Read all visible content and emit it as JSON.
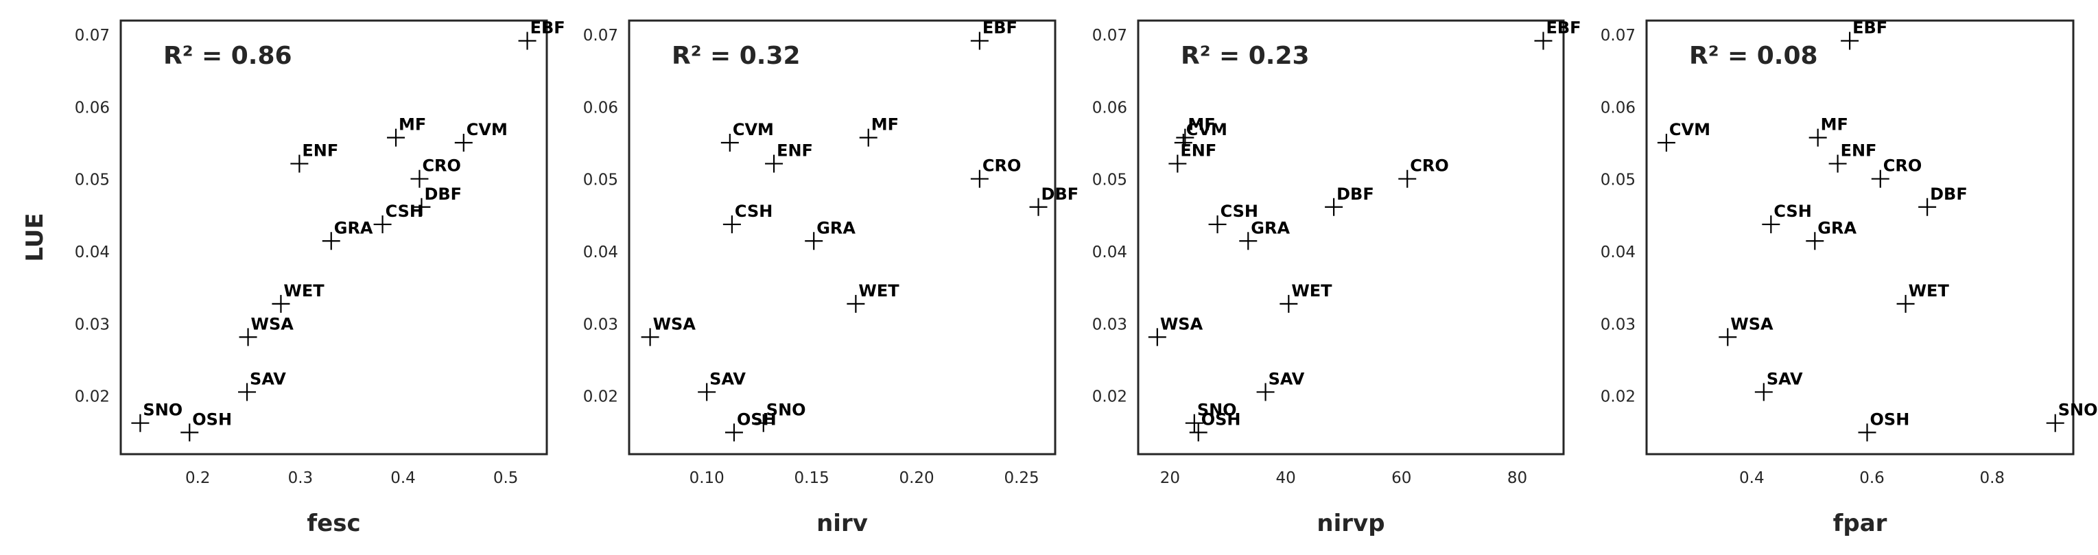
{
  "chart_data": [
    {
      "type": "scatter",
      "xlabel": "fesc",
      "ylabel": "LUE",
      "annotation": "R² = 0.86",
      "xlim": [
        0.125,
        0.54
      ],
      "ylim": [
        0.012,
        0.072
      ],
      "xticks": [
        "0.2",
        "0.3",
        "0.4",
        "0.5"
      ],
      "xtick_values": [
        0.2,
        0.3,
        0.4,
        0.5
      ],
      "yticks": [
        "0.02",
        "0.03",
        "0.04",
        "0.05",
        "0.06",
        "0.07"
      ],
      "ytick_values": [
        0.02,
        0.03,
        0.04,
        0.05,
        0.06,
        0.07
      ],
      "points": [
        {
          "label": "EBF",
          "x": 0.521,
          "y": 0.0692
        },
        {
          "label": "MF",
          "x": 0.393,
          "y": 0.0558
        },
        {
          "label": "CVM",
          "x": 0.459,
          "y": 0.0551
        },
        {
          "label": "ENF",
          "x": 0.299,
          "y": 0.0522
        },
        {
          "label": "CRO",
          "x": 0.416,
          "y": 0.0501
        },
        {
          "label": "DBF",
          "x": 0.418,
          "y": 0.0462
        },
        {
          "label": "CSH",
          "x": 0.38,
          "y": 0.0438
        },
        {
          "label": "GRA",
          "x": 0.33,
          "y": 0.0415
        },
        {
          "label": "WET",
          "x": 0.281,
          "y": 0.0328
        },
        {
          "label": "WSA",
          "x": 0.249,
          "y": 0.0282
        },
        {
          "label": "SAV",
          "x": 0.248,
          "y": 0.0206
        },
        {
          "label": "SNO",
          "x": 0.144,
          "y": 0.0163
        },
        {
          "label": "OSH",
          "x": 0.192,
          "y": 0.015
        }
      ]
    },
    {
      "type": "scatter",
      "xlabel": "nirv",
      "ylabel": "",
      "annotation": "R² = 0.32",
      "xlim": [
        0.063,
        0.266
      ],
      "ylim": [
        0.012,
        0.072
      ],
      "xticks": [
        "0.10",
        "0.15",
        "0.20",
        "0.25"
      ],
      "xtick_values": [
        0.1,
        0.15,
        0.2,
        0.25
      ],
      "yticks": [
        "0.02",
        "0.03",
        "0.04",
        "0.05",
        "0.06",
        "0.07"
      ],
      "ytick_values": [
        0.02,
        0.03,
        0.04,
        0.05,
        0.06,
        0.07
      ],
      "points": [
        {
          "label": "EBF",
          "x": 0.23,
          "y": 0.0692
        },
        {
          "label": "CVM",
          "x": 0.111,
          "y": 0.0551
        },
        {
          "label": "MF",
          "x": 0.177,
          "y": 0.0558
        },
        {
          "label": "ENF",
          "x": 0.132,
          "y": 0.0522
        },
        {
          "label": "CRO",
          "x": 0.23,
          "y": 0.0501
        },
        {
          "label": "DBF",
          "x": 0.258,
          "y": 0.0462
        },
        {
          "label": "CSH",
          "x": 0.112,
          "y": 0.0438
        },
        {
          "label": "GRA",
          "x": 0.151,
          "y": 0.0415
        },
        {
          "label": "WET",
          "x": 0.171,
          "y": 0.0328
        },
        {
          "label": "WSA",
          "x": 0.073,
          "y": 0.0282
        },
        {
          "label": "SAV",
          "x": 0.1,
          "y": 0.0206
        },
        {
          "label": "SNO",
          "x": 0.127,
          "y": 0.0163
        },
        {
          "label": "OSH",
          "x": 0.113,
          "y": 0.015
        }
      ]
    },
    {
      "type": "scatter",
      "xlabel": "nirvp",
      "ylabel": "",
      "annotation": "R² = 0.23",
      "xlim": [
        14.5,
        88
      ],
      "ylim": [
        0.012,
        0.072
      ],
      "xticks": [
        "20",
        "40",
        "60",
        "80"
      ],
      "xtick_values": [
        20,
        40,
        60,
        80
      ],
      "yticks": [
        "0.02",
        "0.03",
        "0.04",
        "0.05",
        "0.06",
        "0.07"
      ],
      "ytick_values": [
        0.02,
        0.03,
        0.04,
        0.05,
        0.06,
        0.07
      ],
      "points": [
        {
          "label": "EBF",
          "x": 84.5,
          "y": 0.0692
        },
        {
          "label": "MF",
          "x": 22.6,
          "y": 0.0558
        },
        {
          "label": "CVM",
          "x": 22.3,
          "y": 0.0551
        },
        {
          "label": "ENF",
          "x": 21.3,
          "y": 0.0522
        },
        {
          "label": "CRO",
          "x": 61,
          "y": 0.0501
        },
        {
          "label": "DBF",
          "x": 48.3,
          "y": 0.0462
        },
        {
          "label": "CSH",
          "x": 28.2,
          "y": 0.0438
        },
        {
          "label": "GRA",
          "x": 33.5,
          "y": 0.0415
        },
        {
          "label": "WET",
          "x": 40.5,
          "y": 0.0328
        },
        {
          "label": "WSA",
          "x": 17.8,
          "y": 0.0282
        },
        {
          "label": "SAV",
          "x": 36.5,
          "y": 0.0206
        },
        {
          "label": "SNO",
          "x": 24.2,
          "y": 0.0163
        },
        {
          "label": "OSH",
          "x": 24.9,
          "y": 0.015
        }
      ]
    },
    {
      "type": "scatter",
      "xlabel": "fpar",
      "ylabel": "",
      "annotation": "R² = 0.08",
      "xlim": [
        0.225,
        0.935
      ],
      "ylim": [
        0.012,
        0.072
      ],
      "xticks": [
        "0.4",
        "0.6",
        "0.8"
      ],
      "xtick_values": [
        0.4,
        0.6,
        0.8
      ],
      "yticks": [
        "0.02",
        "0.03",
        "0.04",
        "0.05",
        "0.06",
        "0.07"
      ],
      "ytick_values": [
        0.02,
        0.03,
        0.04,
        0.05,
        0.06,
        0.07
      ],
      "points": [
        {
          "label": "EBF",
          "x": 0.563,
          "y": 0.0692
        },
        {
          "label": "CVM",
          "x": 0.258,
          "y": 0.0551
        },
        {
          "label": "MF",
          "x": 0.51,
          "y": 0.0558
        },
        {
          "label": "ENF",
          "x": 0.543,
          "y": 0.0522
        },
        {
          "label": "CRO",
          "x": 0.614,
          "y": 0.0501
        },
        {
          "label": "DBF",
          "x": 0.692,
          "y": 0.0462
        },
        {
          "label": "CSH",
          "x": 0.432,
          "y": 0.0438
        },
        {
          "label": "GRA",
          "x": 0.505,
          "y": 0.0415
        },
        {
          "label": "WET",
          "x": 0.656,
          "y": 0.0328
        },
        {
          "label": "WSA",
          "x": 0.36,
          "y": 0.0282
        },
        {
          "label": "SAV",
          "x": 0.42,
          "y": 0.0206
        },
        {
          "label": "SNO",
          "x": 0.905,
          "y": 0.0163
        },
        {
          "label": "OSH",
          "x": 0.592,
          "y": 0.015
        }
      ]
    }
  ]
}
